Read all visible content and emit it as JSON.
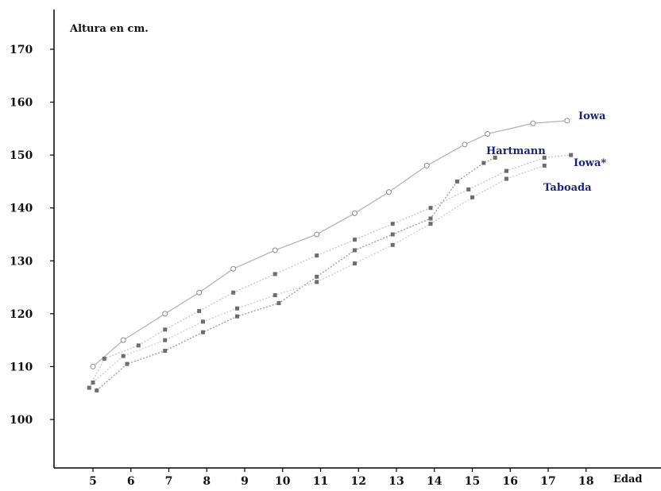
{
  "chart_data": {
    "type": "line",
    "ylabel": "Altura en cm.",
    "xlabel": "Edad",
    "ylim": [
      96,
      176
    ],
    "xlim": [
      4.5,
      18.8
    ],
    "grid": false,
    "y_ticks": [
      "100",
      "110",
      "120",
      "130",
      "140",
      "150",
      "160",
      "170"
    ],
    "x_ticks": [
      "5",
      "6",
      "7",
      "8",
      "9",
      "10",
      "11",
      "12",
      "13",
      "14",
      "15",
      "16",
      "17",
      "18"
    ],
    "series": [
      {
        "name": "Iowa",
        "color": "#b5b5b5",
        "marker": "open-circle",
        "label_color": "#1a237e",
        "x": [
          5,
          5.8,
          6.9,
          7.8,
          8.7,
          9.8,
          10.9,
          11.9,
          12.8,
          13.8,
          14.8,
          15.4,
          16.6,
          17.5
        ],
        "y": [
          110,
          115,
          120,
          124,
          128.5,
          132,
          135,
          139,
          143,
          148,
          152,
          154,
          156,
          156.5
        ]
      },
      {
        "name": "Hartmann",
        "color": "#c4c4c4",
        "marker": "filled-square",
        "label_color": "#1a237e",
        "x": [
          4.9,
          5.3,
          6.2,
          6.9,
          7.8,
          8.7,
          9.8,
          10.9,
          11.9,
          12.9,
          13.9,
          14.9,
          15.9,
          16.9,
          17.6
        ],
        "y": [
          106,
          111.5,
          114,
          117,
          120.5,
          124,
          127.5,
          131,
          134,
          137,
          140,
          143.5,
          147,
          149.5,
          150
        ]
      },
      {
        "name": "Iowa*",
        "color": "#999999",
        "marker": "filled-square",
        "label_color": "#1a237e",
        "x": [
          5.1,
          5.9,
          6.9,
          7.9,
          8.8,
          9.9,
          10.9,
          11.9,
          12.9,
          13.9,
          14.6,
          15.3,
          15.6
        ],
        "y": [
          105.5,
          110.5,
          113,
          116.5,
          119.5,
          122,
          127,
          132,
          135,
          138,
          145,
          148.5,
          149.5
        ]
      },
      {
        "name": "Taboada",
        "color": "#cccccc",
        "marker": "filled-square",
        "label_color": "#1a237e",
        "x": [
          5,
          5.8,
          6.9,
          7.9,
          8.8,
          9.8,
          10.9,
          11.9,
          12.9,
          13.9,
          15,
          15.9,
          16.9
        ],
        "y": [
          107,
          112,
          115,
          118.5,
          121,
          123.5,
          126,
          129.5,
          133,
          137,
          142,
          145.5,
          148
        ]
      }
    ]
  }
}
